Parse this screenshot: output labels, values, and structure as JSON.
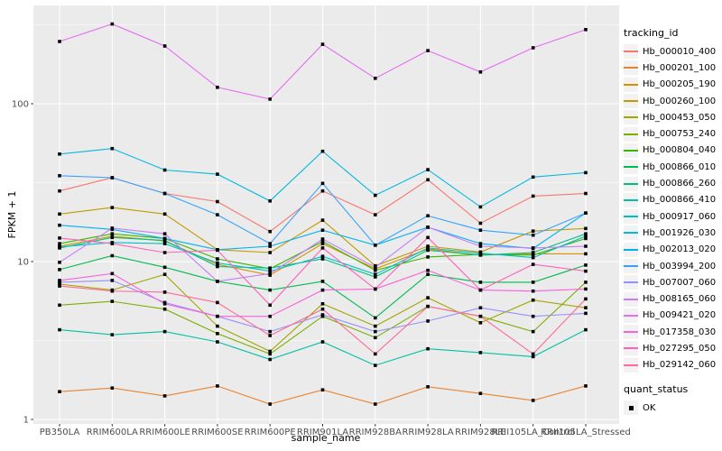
{
  "figure": {
    "panel_background": "#EBEBEB",
    "grid_color": "#FFFFFF",
    "tick_color": "#333333",
    "tick_label_color": "#4D4D4D",
    "text_color": "#000000",
    "legend_key_background": "#F2F2F2",
    "point_color": "#000000"
  },
  "chart_data": {
    "type": "line",
    "title": "",
    "xlabel": "sample_name",
    "ylabel": "FPKM + 1",
    "yscale": "log10",
    "yticks": [
      1,
      10,
      100
    ],
    "ytick_labels": [
      "1",
      "10",
      "100"
    ],
    "ylim": [
      0.95,
      420
    ],
    "grid": true,
    "legend_position": "right",
    "marker": "black-square",
    "categories": [
      "PB350LA",
      "RRIM600LA",
      "RRIM600LE",
      "RRIM600SE",
      "RRIM600PE",
      "RRIM901LA",
      "RRIM928BA",
      "RRIM928LA",
      "RRIM928LE",
      "RRII105LA_Control",
      "RRII105LA_Stressed"
    ],
    "series": [
      {
        "name": "Hb_000010_400",
        "color": "#F8766D",
        "values": [
          28,
          34,
          27,
          24,
          15.5,
          28,
          19.8,
          33,
          17.5,
          26,
          27
        ]
      },
      {
        "name": "Hb_000201_100",
        "color": "#EA8331",
        "values": [
          1.5,
          1.58,
          1.41,
          1.63,
          1.25,
          1.54,
          1.25,
          1.61,
          1.46,
          1.32,
          1.63
        ]
      },
      {
        "name": "Hb_000205_190",
        "color": "#D89000",
        "values": [
          12.5,
          14.5,
          13.5,
          9.6,
          8.2,
          13.0,
          9.0,
          12.0,
          11.0,
          11.2,
          11.2
        ]
      },
      {
        "name": "Hb_000260_100",
        "color": "#C09B00",
        "values": [
          20,
          22,
          20,
          11.9,
          11.4,
          18.3,
          9.4,
          12.5,
          11.5,
          15.6,
          16.2
        ]
      },
      {
        "name": "Hb_000453_050",
        "color": "#A3A500",
        "values": [
          7.2,
          6.6,
          8.3,
          3.9,
          2.7,
          5.4,
          3.9,
          5.9,
          4.1,
          5.7,
          5.1
        ]
      },
      {
        "name": "Hb_000753_240",
        "color": "#7CAE00",
        "values": [
          5.3,
          5.6,
          5.0,
          3.5,
          2.6,
          4.5,
          3.3,
          5.2,
          4.5,
          3.6,
          7.4
        ]
      },
      {
        "name": "Hb_000804_040",
        "color": "#39B600",
        "values": [
          13,
          15,
          14,
          10.4,
          9.0,
          13.4,
          8.8,
          10.7,
          11.1,
          11.0,
          14.0
        ]
      },
      {
        "name": "Hb_000866_010",
        "color": "#00BB4E",
        "values": [
          8.9,
          10.9,
          9.2,
          7.5,
          6.6,
          7.5,
          4.4,
          8.3,
          7.4,
          7.4,
          9.5
        ]
      },
      {
        "name": "Hb_000866_260",
        "color": "#00BF7D",
        "values": [
          12.2,
          14.2,
          13.6,
          9.3,
          9.1,
          10.4,
          8.0,
          11.8,
          11.0,
          11.4,
          15.0
        ]
      },
      {
        "name": "Hb_000866_410",
        "color": "#00C1A3",
        "values": [
          3.7,
          3.44,
          3.6,
          3.1,
          2.4,
          3.1,
          2.2,
          2.8,
          2.65,
          2.5,
          3.7
        ]
      },
      {
        "name": "Hb_000917_060",
        "color": "#00BFC4",
        "values": [
          12.4,
          13.2,
          13.0,
          9.8,
          8.7,
          10.8,
          8.3,
          12.2,
          11.3,
          10.6,
          14.5
        ]
      },
      {
        "name": "Hb_001926_030",
        "color": "#00BAE0",
        "values": [
          48,
          52,
          38,
          35.8,
          24.2,
          50,
          26.3,
          38.2,
          22.2,
          34.3,
          36.6
        ]
      },
      {
        "name": "Hb_002013_020",
        "color": "#00B0F6",
        "values": [
          17,
          16,
          14,
          11.9,
          12.5,
          15.8,
          12.7,
          16.5,
          13.0,
          12.1,
          20.3
        ]
      },
      {
        "name": "Hb_003994_200",
        "color": "#35A2FF",
        "values": [
          35,
          34,
          27,
          19.8,
          13.0,
          31.3,
          12.7,
          19.5,
          15.8,
          14.7,
          20.3
        ]
      },
      {
        "name": "Hb_007007_060",
        "color": "#9590FF",
        "values": [
          7.4,
          7.6,
          5.5,
          4.5,
          3.6,
          4.6,
          3.6,
          4.2,
          5.1,
          4.5,
          4.7
        ]
      },
      {
        "name": "Hb_008165_060",
        "color": "#C77CFF",
        "values": [
          9.9,
          16.3,
          15.0,
          7.5,
          8.4,
          13.9,
          9.2,
          16.5,
          12.5,
          12.2,
          12.5
        ]
      },
      {
        "name": "Hb_009421_020",
        "color": "#E76BF3",
        "values": [
          248,
          320,
          232,
          127,
          107,
          238,
          145,
          217,
          159,
          226,
          295
        ]
      },
      {
        "name": "Hb_017358_030",
        "color": "#FA62DB",
        "values": [
          7.6,
          8.4,
          5.4,
          4.5,
          4.5,
          6.6,
          6.7,
          8.8,
          6.6,
          6.5,
          6.7
        ]
      },
      {
        "name": "Hb_027295_050",
        "color": "#FF62BC",
        "values": [
          14.1,
          13.0,
          11.4,
          11.8,
          5.3,
          12.2,
          6.7,
          14.2,
          6.6,
          9.6,
          8.7
        ]
      },
      {
        "name": "Hb_029142_060",
        "color": "#FF6A98",
        "values": [
          7.0,
          6.5,
          6.4,
          5.5,
          3.4,
          5.0,
          2.6,
          5.2,
          4.5,
          2.6,
          5.8
        ]
      }
    ],
    "legend": {
      "color_title": "tracking_id",
      "shape_title": "quant_status",
      "shape_items": [
        {
          "label": "OK",
          "marker": "black-square"
        }
      ]
    }
  }
}
